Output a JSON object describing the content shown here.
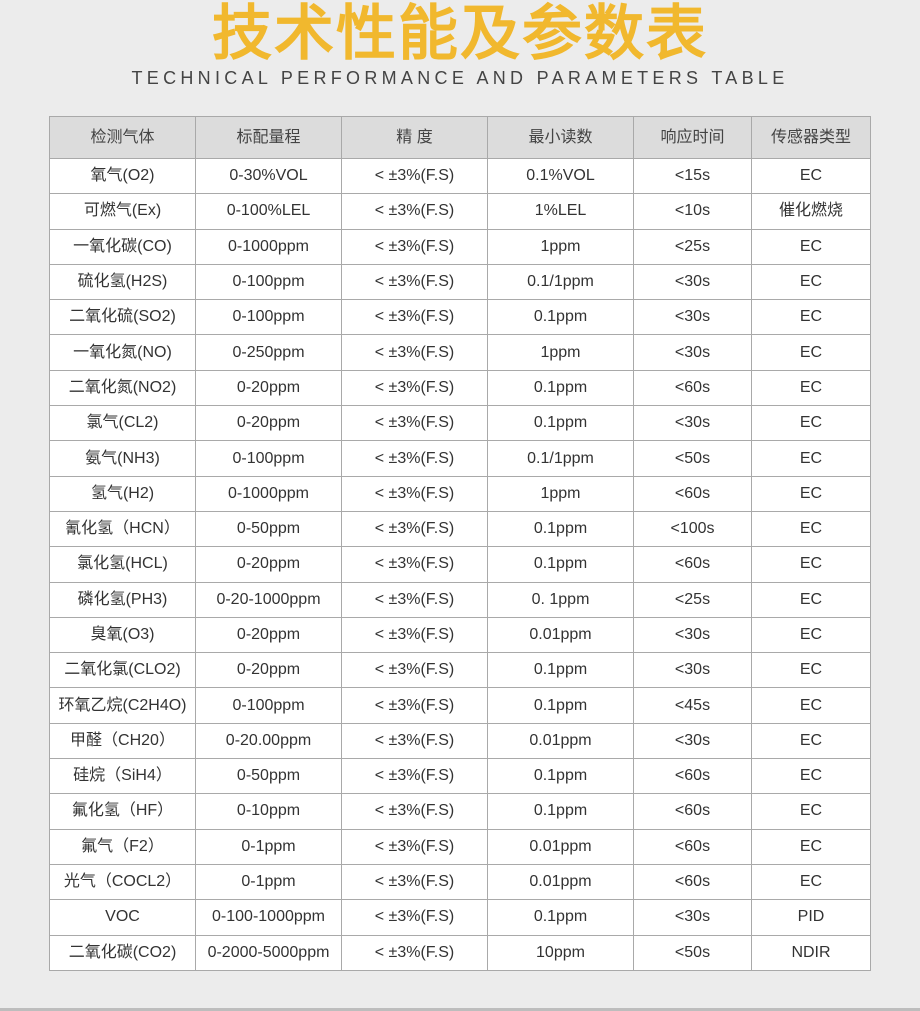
{
  "header": {
    "title": "技术性能及参数表",
    "subtitle": "TECHNICAL PERFORMANCE AND PARAMETERS TABLE",
    "title_color": "#f1b82e"
  },
  "table": {
    "columns": [
      "检测气体",
      "标配量程",
      "精 度",
      "最小读数",
      "响应时间",
      "传感器类型"
    ],
    "rows": [
      [
        "氧气(O2)",
        "0-30%VOL",
        "< ±3%(F.S)",
        "0.1%VOL",
        "<15s",
        "EC"
      ],
      [
        "可燃气(Ex)",
        "0-100%LEL",
        "< ±3%(F.S)",
        "1%LEL",
        "<10s",
        "催化燃烧"
      ],
      [
        "一氧化碳(CO)",
        "0-1000ppm",
        "< ±3%(F.S)",
        "1ppm",
        "<25s",
        "EC"
      ],
      [
        "硫化氢(H2S)",
        "0-100ppm",
        "< ±3%(F.S)",
        "0.1/1ppm",
        "<30s",
        "EC"
      ],
      [
        "二氧化硫(SO2)",
        "0-100ppm",
        "< ±3%(F.S)",
        "0.1ppm",
        "<30s",
        "EC"
      ],
      [
        "一氧化氮(NO)",
        "0-250ppm",
        "< ±3%(F.S)",
        "1ppm",
        "<30s",
        "EC"
      ],
      [
        "二氧化氮(NO2)",
        "0-20ppm",
        "< ±3%(F.S)",
        "0.1ppm",
        "<60s",
        "EC"
      ],
      [
        "氯气(CL2)",
        "0-20ppm",
        "< ±3%(F.S)",
        "0.1ppm",
        "<30s",
        "EC"
      ],
      [
        "氨气(NH3)",
        "0-100ppm",
        "< ±3%(F.S)",
        "0.1/1ppm",
        "<50s",
        "EC"
      ],
      [
        "氢气(H2)",
        "0-1000ppm",
        "< ±3%(F.S)",
        "1ppm",
        "<60s",
        "EC"
      ],
      [
        "氰化氢（HCN）",
        "0-50ppm",
        "< ±3%(F.S)",
        "0.1ppm",
        "<100s",
        "EC"
      ],
      [
        "氯化氢(HCL)",
        "0-20ppm",
        "< ±3%(F.S)",
        "0.1ppm",
        "<60s",
        "EC"
      ],
      [
        "磷化氢(PH3)",
        "0-20-1000ppm",
        "< ±3%(F.S)",
        "0. 1ppm",
        "<25s",
        "EC"
      ],
      [
        "臭氧(O3)",
        "0-20ppm",
        "< ±3%(F.S)",
        "0.01ppm",
        "<30s",
        "EC"
      ],
      [
        "二氧化氯(CLO2)",
        "0-20ppm",
        "< ±3%(F.S)",
        "0.1ppm",
        "<30s",
        "EC"
      ],
      [
        "环氧乙烷(C2H4O)",
        "0-100ppm",
        "< ±3%(F.S)",
        "0.1ppm",
        "<45s",
        "EC"
      ],
      [
        "甲醛（CH20）",
        "0-20.00ppm",
        "< ±3%(F.S)",
        "0.01ppm",
        "<30s",
        "EC"
      ],
      [
        "硅烷（SiH4）",
        "0-50ppm",
        "< ±3%(F.S)",
        "0.1ppm",
        "<60s",
        "EC"
      ],
      [
        "氟化氢（HF）",
        "0-10ppm",
        "< ±3%(F.S)",
        "0.1ppm",
        "<60s",
        "EC"
      ],
      [
        "氟气（F2）",
        "0-1ppm",
        "< ±3%(F.S)",
        "0.01ppm",
        "<60s",
        "EC"
      ],
      [
        "光气（COCL2）",
        "0-1ppm",
        "< ±3%(F.S)",
        "0.01ppm",
        "<60s",
        "EC"
      ],
      [
        "VOC",
        "0-100-1000ppm",
        "< ±3%(F.S)",
        "0.1ppm",
        "<30s",
        "PID"
      ],
      [
        "二氧化碳(CO2)",
        "0-2000-5000ppm",
        "< ±3%(F.S)",
        "10ppm",
        "<50s",
        "NDIR"
      ]
    ]
  }
}
